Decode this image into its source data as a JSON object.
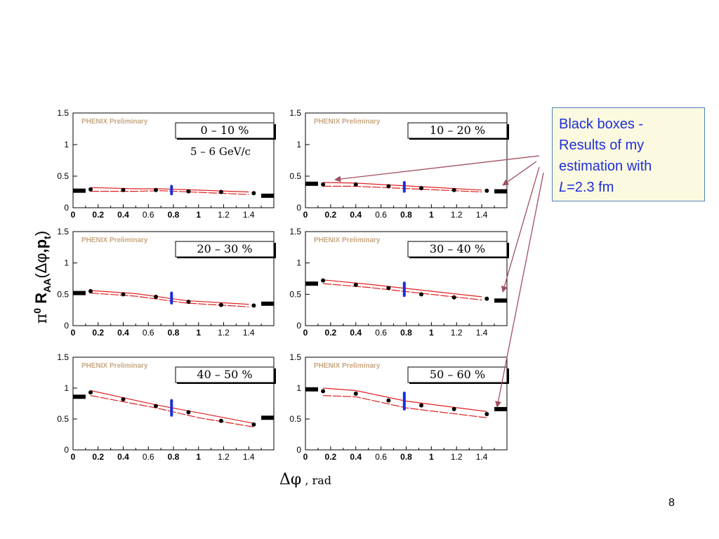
{
  "slide": {
    "page_number": "8",
    "callout": {
      "line1": "Black boxes -",
      "line2": "Results of my",
      "line3": "estimation with",
      "line4_var": "L",
      "line4_rest": "=2.3 fm"
    },
    "y_axis_label": {
      "pi": "π",
      "zero": "0",
      "R": " R",
      "sub": "AA",
      "open": "(",
      "dphi": "Δφ",
      "comma_p": ",p",
      "t": "t",
      "close": ")"
    },
    "x_axis_label": {
      "symbol": "Δφ",
      "unit": " , rad"
    }
  },
  "chart_data": [
    {
      "type": "scatter",
      "panel": "0-10",
      "watermark": "PHENIX Preliminary",
      "label": "0 – 10 %",
      "annotation": "5 – 6 GeV/c",
      "xlim": [
        0,
        1.6
      ],
      "ylim": [
        0,
        1.5
      ],
      "x_ticks": [
        "0",
        "0.2",
        "0.4",
        "0.6",
        "0.8",
        "1",
        "1.2",
        "1.4"
      ],
      "y_ticks": [
        "0",
        "0.5",
        "1",
        "1.5"
      ],
      "points": [
        [
          0.14,
          0.29
        ],
        [
          0.4,
          0.28
        ],
        [
          0.66,
          0.28
        ],
        [
          0.92,
          0.26
        ],
        [
          1.18,
          0.25
        ],
        [
          1.44,
          0.23
        ]
      ],
      "band_upper": [
        [
          0.14,
          0.32
        ],
        [
          0.5,
          0.3
        ],
        [
          0.7,
          0.3
        ],
        [
          1.4,
          0.25
        ]
      ],
      "band_lower": [
        [
          0.14,
          0.26
        ],
        [
          0.5,
          0.26
        ],
        [
          0.7,
          0.27
        ],
        [
          1.4,
          0.21
        ]
      ],
      "black_boxes": [
        [
          0.05,
          0.27
        ],
        [
          1.55,
          0.19
        ]
      ],
      "blue_bar": [
        0.785,
        0.22,
        0.34
      ]
    },
    {
      "type": "scatter",
      "panel": "10-20",
      "watermark": "PHENIX Preliminary",
      "label": "10 – 20 %",
      "xlim": [
        0,
        1.6
      ],
      "ylim": [
        0,
        1.5
      ],
      "x_ticks": [
        "0",
        "0.2",
        "0.4",
        "0.6",
        "0.8",
        "1",
        "1.2",
        "1.4"
      ],
      "y_ticks": [
        "0",
        "0.5",
        "1",
        "1.5"
      ],
      "points": [
        [
          0.14,
          0.37
        ],
        [
          0.4,
          0.37
        ],
        [
          0.66,
          0.34
        ],
        [
          0.92,
          0.31
        ],
        [
          1.18,
          0.28
        ],
        [
          1.44,
          0.27
        ]
      ],
      "band_upper": [
        [
          0.14,
          0.4
        ],
        [
          0.4,
          0.39
        ],
        [
          1.4,
          0.28
        ]
      ],
      "band_lower": [
        [
          0.14,
          0.34
        ],
        [
          0.4,
          0.34
        ],
        [
          1.4,
          0.25
        ]
      ],
      "black_boxes": [
        [
          0.05,
          0.38
        ],
        [
          1.55,
          0.26
        ]
      ],
      "blue_bar": [
        0.785,
        0.26,
        0.4
      ]
    },
    {
      "type": "scatter",
      "panel": "20-30",
      "watermark": "PHENIX Preliminary",
      "label": "20 – 30 %",
      "xlim": [
        0,
        1.6
      ],
      "ylim": [
        0,
        1.5
      ],
      "x_ticks": [
        "0",
        "0.2",
        "0.4",
        "0.6",
        "0.8",
        "1",
        "1.2",
        "1.4"
      ],
      "y_ticks": [
        "0",
        "0.5",
        "1",
        "1.5"
      ],
      "points": [
        [
          0.14,
          0.55
        ],
        [
          0.4,
          0.5
        ],
        [
          0.66,
          0.46
        ],
        [
          0.92,
          0.38
        ],
        [
          1.18,
          0.33
        ],
        [
          1.44,
          0.32
        ]
      ],
      "band_upper": [
        [
          0.14,
          0.56
        ],
        [
          0.5,
          0.51
        ],
        [
          0.9,
          0.4
        ],
        [
          1.4,
          0.34
        ]
      ],
      "band_lower": [
        [
          0.14,
          0.52
        ],
        [
          0.5,
          0.47
        ],
        [
          0.9,
          0.36
        ],
        [
          1.4,
          0.3
        ]
      ],
      "black_boxes": [
        [
          0.05,
          0.52
        ],
        [
          1.55,
          0.35
        ]
      ],
      "blue_bar": [
        0.785,
        0.36,
        0.52
      ]
    },
    {
      "type": "scatter",
      "panel": "30-40",
      "watermark": "PHENIX Preliminary",
      "label": "30 – 40 %",
      "xlim": [
        0,
        1.6
      ],
      "ylim": [
        0,
        1.5
      ],
      "x_ticks": [
        "0",
        "0.2",
        "0.4",
        "0.6",
        "0.8",
        "1",
        "1.2",
        "1.4"
      ],
      "y_ticks": [
        "0",
        "0.5",
        "1",
        "1.5"
      ],
      "points": [
        [
          0.14,
          0.72
        ],
        [
          0.4,
          0.65
        ],
        [
          0.66,
          0.6
        ],
        [
          0.92,
          0.5
        ],
        [
          1.18,
          0.45
        ],
        [
          1.44,
          0.43
        ]
      ],
      "band_upper": [
        [
          0.14,
          0.73
        ],
        [
          0.5,
          0.66
        ],
        [
          1.4,
          0.46
        ]
      ],
      "band_lower": [
        [
          0.14,
          0.67
        ],
        [
          0.5,
          0.61
        ],
        [
          1.4,
          0.41
        ]
      ],
      "black_boxes": [
        [
          0.05,
          0.67
        ],
        [
          1.55,
          0.4
        ]
      ],
      "blue_bar": [
        0.785,
        0.48,
        0.68
      ]
    },
    {
      "type": "scatter",
      "panel": "40-50",
      "watermark": "PHENIX Preliminary",
      "label": "40 – 50 %",
      "xlim": [
        0,
        1.6
      ],
      "ylim": [
        0,
        1.5
      ],
      "x_ticks": [
        "0",
        "0.2",
        "0.4",
        "0.6",
        "0.8",
        "1",
        "1.2",
        "1.4"
      ],
      "y_ticks": [
        "0",
        "0.5",
        "1",
        "1.5"
      ],
      "points": [
        [
          0.14,
          0.93
        ],
        [
          0.4,
          0.82
        ],
        [
          0.66,
          0.71
        ],
        [
          0.92,
          0.61
        ],
        [
          1.18,
          0.47
        ],
        [
          1.44,
          0.41
        ]
      ],
      "band_upper": [
        [
          0.14,
          0.96
        ],
        [
          0.66,
          0.73
        ],
        [
          1.0,
          0.6
        ],
        [
          1.44,
          0.43
        ]
      ],
      "band_lower": [
        [
          0.14,
          0.88
        ],
        [
          0.66,
          0.68
        ],
        [
          1.0,
          0.52
        ],
        [
          1.44,
          0.37
        ]
      ],
      "black_boxes": [
        [
          0.05,
          0.86
        ],
        [
          1.55,
          0.52
        ]
      ],
      "blue_bar": [
        0.785,
        0.56,
        0.8
      ]
    },
    {
      "type": "scatter",
      "panel": "50-60",
      "watermark": "PHENIX Preliminary",
      "label": "50 – 60 %",
      "xlim": [
        0,
        1.6
      ],
      "ylim": [
        0,
        1.5
      ],
      "x_ticks": [
        "0",
        "0.2",
        "0.4",
        "0.6",
        "0.8",
        "1",
        "1.2",
        "1.4"
      ],
      "y_ticks": [
        "0",
        "0.5",
        "1",
        "1.5"
      ],
      "points": [
        [
          0.14,
          0.95
        ],
        [
          0.4,
          0.91
        ],
        [
          0.66,
          0.8
        ],
        [
          0.92,
          0.72
        ],
        [
          1.18,
          0.66
        ],
        [
          1.44,
          0.58
        ]
      ],
      "band_upper": [
        [
          0.14,
          1.0
        ],
        [
          0.4,
          0.96
        ],
        [
          0.8,
          0.79
        ],
        [
          1.44,
          0.62
        ]
      ],
      "band_lower": [
        [
          0.14,
          0.88
        ],
        [
          0.4,
          0.86
        ],
        [
          0.8,
          0.68
        ],
        [
          1.44,
          0.52
        ]
      ],
      "black_boxes": [
        [
          0.05,
          0.98
        ],
        [
          1.55,
          0.66
        ]
      ],
      "blue_bar": [
        0.785,
        0.66,
        0.92
      ]
    }
  ]
}
